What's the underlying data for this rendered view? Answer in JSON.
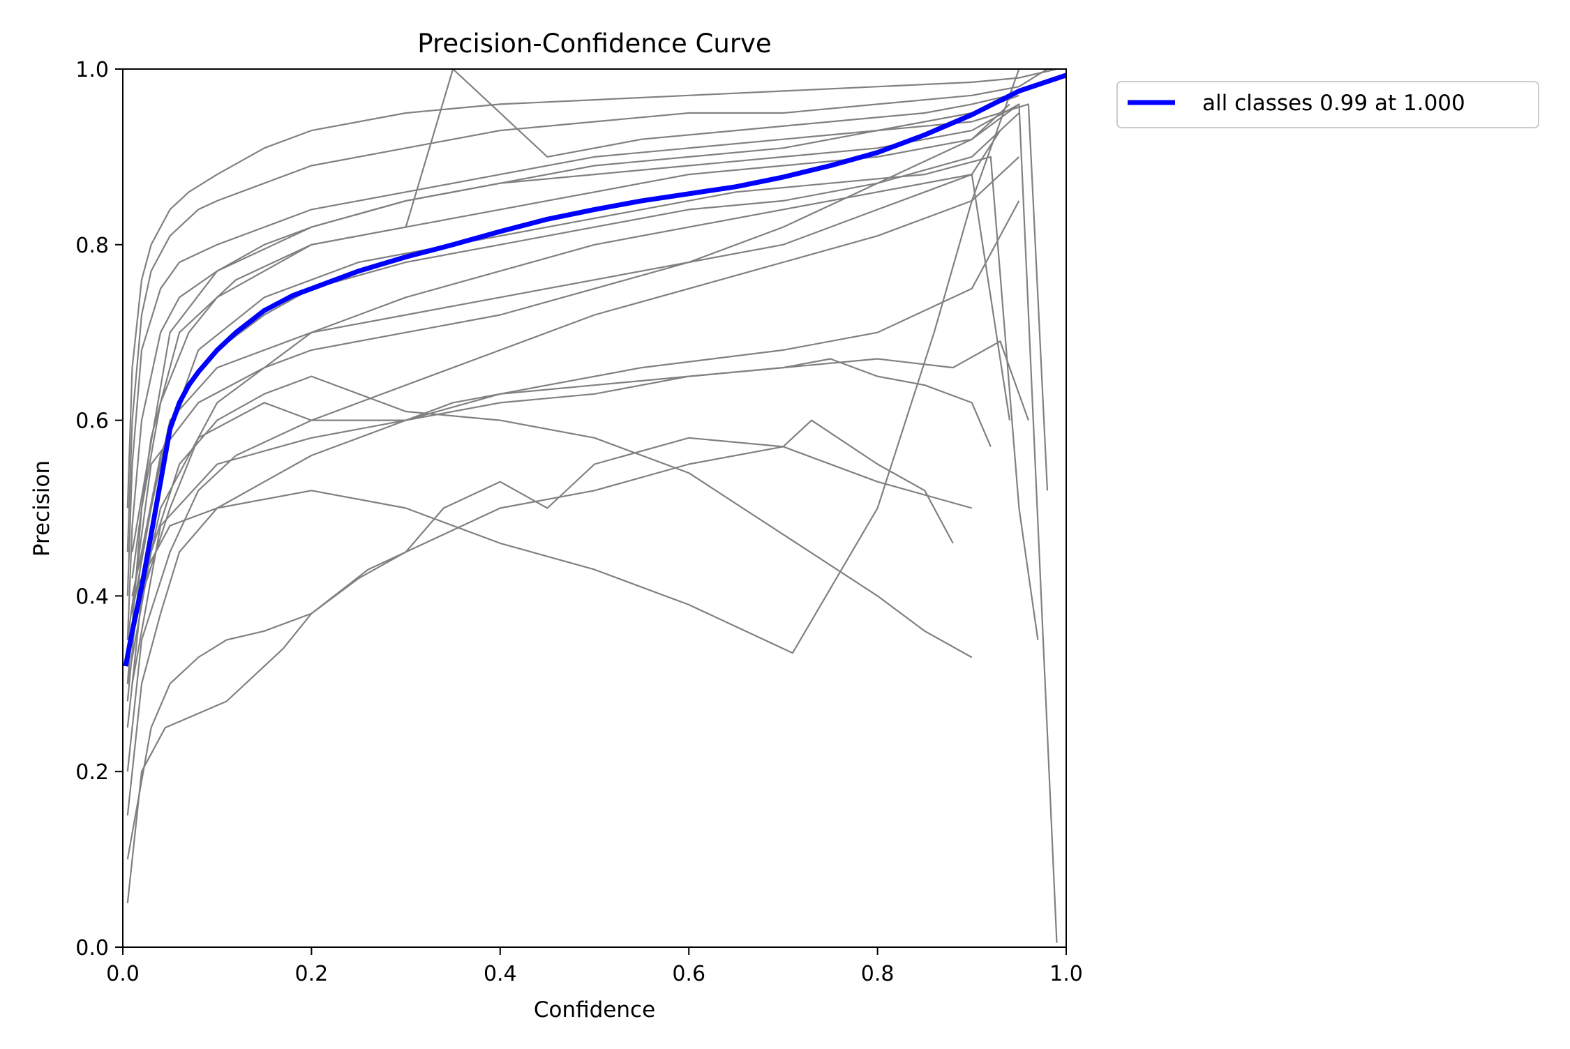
{
  "chart_data": {
    "type": "line",
    "title": "Precision-Confidence Curve",
    "xlabel": "Confidence",
    "ylabel": "Precision",
    "xlim": [
      0,
      1
    ],
    "ylim": [
      0,
      1
    ],
    "xticks": [
      "0.0",
      "0.2",
      "0.4",
      "0.6",
      "0.8",
      "1.0"
    ],
    "yticks": [
      "0.0",
      "0.2",
      "0.4",
      "0.6",
      "0.8",
      "1.0"
    ],
    "grid": false,
    "legend_position": "outside-top-right",
    "colors": {
      "aggregate": "#0000ff",
      "per_class": "#808080",
      "axes": "#000000"
    },
    "series": [
      {
        "name": "all classes 0.99 at 1.000",
        "color": "#0000ff",
        "x": [
          0.003,
          0.01,
          0.02,
          0.03,
          0.04,
          0.05,
          0.06,
          0.07,
          0.08,
          0.1,
          0.12,
          0.15,
          0.18,
          0.2,
          0.25,
          0.3,
          0.35,
          0.4,
          0.45,
          0.5,
          0.55,
          0.6,
          0.65,
          0.7,
          0.75,
          0.8,
          0.85,
          0.9,
          0.95,
          1.0
        ],
        "y": [
          0.32,
          0.36,
          0.41,
          0.47,
          0.53,
          0.59,
          0.62,
          0.64,
          0.655,
          0.68,
          0.7,
          0.725,
          0.742,
          0.75,
          0.77,
          0.786,
          0.8,
          0.815,
          0.829,
          0.84,
          0.85,
          0.858,
          0.866,
          0.877,
          0.89,
          0.905,
          0.925,
          0.948,
          0.975,
          0.993
        ]
      },
      {
        "color": "#808080",
        "x": [
          0.005,
          0.01,
          0.02,
          0.03,
          0.05,
          0.07,
          0.1,
          0.15,
          0.2,
          0.3,
          0.4,
          0.5,
          0.6,
          0.7,
          0.8,
          0.9,
          0.95,
          0.99
        ],
        "y": [
          0.5,
          0.66,
          0.76,
          0.8,
          0.84,
          0.86,
          0.88,
          0.91,
          0.93,
          0.95,
          0.96,
          0.965,
          0.97,
          0.975,
          0.98,
          0.985,
          0.99,
          1.0
        ]
      },
      {
        "color": "#808080",
        "x": [
          0.005,
          0.01,
          0.02,
          0.03,
          0.05,
          0.08,
          0.1,
          0.15,
          0.2,
          0.3,
          0.4,
          0.5,
          0.6,
          0.7,
          0.8,
          0.9,
          0.95,
          0.98
        ],
        "y": [
          0.45,
          0.6,
          0.72,
          0.77,
          0.81,
          0.84,
          0.85,
          0.87,
          0.89,
          0.91,
          0.93,
          0.94,
          0.95,
          0.95,
          0.96,
          0.97,
          0.98,
          1.0
        ]
      },
      {
        "color": "#808080",
        "x": [
          0.005,
          0.01,
          0.02,
          0.04,
          0.06,
          0.1,
          0.15,
          0.2,
          0.3,
          0.4,
          0.5,
          0.6,
          0.7,
          0.8,
          0.9,
          0.95
        ],
        "y": [
          0.4,
          0.55,
          0.68,
          0.75,
          0.78,
          0.8,
          0.82,
          0.84,
          0.86,
          0.88,
          0.9,
          0.91,
          0.92,
          0.93,
          0.95,
          0.97
        ]
      },
      {
        "color": "#808080",
        "x": [
          0.005,
          0.01,
          0.02,
          0.04,
          0.06,
          0.1,
          0.15,
          0.2,
          0.3,
          0.4,
          0.5,
          0.6,
          0.7,
          0.8,
          0.9,
          0.95
        ],
        "y": [
          0.35,
          0.48,
          0.6,
          0.7,
          0.74,
          0.77,
          0.8,
          0.82,
          0.85,
          0.87,
          0.88,
          0.89,
          0.9,
          0.91,
          0.93,
          0.96
        ]
      },
      {
        "color": "#808080",
        "x": [
          0.005,
          0.02,
          0.04,
          0.07,
          0.1,
          0.15,
          0.2,
          0.3,
          0.4,
          0.5,
          0.6,
          0.7,
          0.8,
          0.9,
          0.94
        ],
        "y": [
          0.3,
          0.5,
          0.62,
          0.7,
          0.74,
          0.77,
          0.8,
          0.82,
          0.84,
          0.86,
          0.88,
          0.89,
          0.9,
          0.92,
          0.96
        ]
      },
      {
        "color": "#808080",
        "x": [
          0.005,
          0.02,
          0.04,
          0.07,
          0.1,
          0.15,
          0.2,
          0.3,
          0.4,
          0.5,
          0.6,
          0.7,
          0.8,
          0.9,
          0.95
        ],
        "y": [
          0.28,
          0.45,
          0.56,
          0.64,
          0.68,
          0.72,
          0.75,
          0.78,
          0.8,
          0.82,
          0.84,
          0.85,
          0.87,
          0.9,
          0.95
        ]
      },
      {
        "color": "#808080",
        "x": [
          0.005,
          0.02,
          0.05,
          0.08,
          0.1,
          0.15,
          0.2,
          0.3,
          0.4,
          0.5,
          0.6,
          0.7,
          0.8,
          0.9,
          0.93
        ],
        "y": [
          0.25,
          0.4,
          0.5,
          0.58,
          0.62,
          0.66,
          0.7,
          0.74,
          0.77,
          0.8,
          0.82,
          0.84,
          0.86,
          0.88,
          0.93
        ]
      },
      {
        "color": "#808080",
        "x": [
          0.005,
          0.02,
          0.05,
          0.08,
          0.12,
          0.2,
          0.3,
          0.4,
          0.5,
          0.6,
          0.7,
          0.8,
          0.9,
          0.95
        ],
        "y": [
          0.2,
          0.35,
          0.45,
          0.52,
          0.56,
          0.6,
          0.64,
          0.68,
          0.72,
          0.75,
          0.78,
          0.81,
          0.85,
          0.9
        ]
      },
      {
        "color": "#808080",
        "x": [
          0.005,
          0.02,
          0.04,
          0.06,
          0.1,
          0.15,
          0.2,
          0.3,
          0.35,
          0.45,
          0.55,
          0.7,
          0.8,
          0.9,
          0.95
        ],
        "y": [
          0.15,
          0.3,
          0.38,
          0.45,
          0.5,
          0.53,
          0.56,
          0.6,
          0.62,
          0.64,
          0.66,
          0.68,
          0.7,
          0.75,
          0.85
        ]
      },
      {
        "color": "#808080",
        "x": [
          0.005,
          0.03,
          0.05,
          0.08,
          0.11,
          0.15,
          0.2,
          0.26,
          0.32,
          0.4,
          0.5,
          0.6,
          0.7,
          0.8,
          0.9
        ],
        "y": [
          0.1,
          0.25,
          0.3,
          0.33,
          0.35,
          0.36,
          0.38,
          0.43,
          0.46,
          0.5,
          0.52,
          0.55,
          0.57,
          0.53,
          0.5
        ]
      },
      {
        "color": "#808080",
        "x": [
          0.005,
          0.02,
          0.045,
          0.11,
          0.17,
          0.2,
          0.25,
          0.3,
          0.34,
          0.4,
          0.45,
          0.5,
          0.6,
          0.7,
          0.73,
          0.8,
          0.85,
          0.88
        ],
        "y": [
          0.05,
          0.2,
          0.25,
          0.28,
          0.34,
          0.38,
          0.42,
          0.45,
          0.5,
          0.53,
          0.5,
          0.55,
          0.58,
          0.57,
          0.6,
          0.55,
          0.52,
          0.46
        ]
      },
      {
        "color": "#808080",
        "x": [
          0.005,
          0.03,
          0.06,
          0.1,
          0.15,
          0.2,
          0.25,
          0.3,
          0.4,
          0.5,
          0.6,
          0.7,
          0.8,
          0.85,
          0.9
        ],
        "y": [
          0.3,
          0.45,
          0.55,
          0.6,
          0.63,
          0.65,
          0.63,
          0.61,
          0.6,
          0.58,
          0.54,
          0.47,
          0.4,
          0.36,
          0.33
        ]
      },
      {
        "color": "#808080",
        "x": [
          0.01,
          0.05,
          0.1,
          0.2,
          0.3,
          0.4,
          0.5,
          0.6,
          0.71,
          0.8,
          0.86,
          0.9,
          0.95
        ],
        "y": [
          0.4,
          0.48,
          0.5,
          0.52,
          0.5,
          0.46,
          0.43,
          0.39,
          0.335,
          0.5,
          0.7,
          0.85,
          1.0
        ]
      },
      {
        "color": "#808080",
        "x": [
          0.01,
          0.04,
          0.08,
          0.15,
          0.2,
          0.3,
          0.4,
          0.5,
          0.6,
          0.7,
          0.8,
          0.88,
          0.93,
          0.96
        ],
        "y": [
          0.35,
          0.5,
          0.58,
          0.62,
          0.6,
          0.6,
          0.63,
          0.64,
          0.65,
          0.66,
          0.67,
          0.66,
          0.69,
          0.6
        ]
      },
      {
        "color": "#808080",
        "x": [
          0.01,
          0.05,
          0.1,
          0.2,
          0.3,
          0.4,
          0.5,
          0.6,
          0.7,
          0.75,
          0.8,
          0.85,
          0.9,
          0.94
        ],
        "y": [
          0.4,
          0.6,
          0.66,
          0.7,
          0.72,
          0.74,
          0.76,
          0.78,
          0.8,
          0.82,
          0.84,
          0.86,
          0.88,
          0.6
        ]
      },
      {
        "color": "#808080",
        "x": [
          0.01,
          0.04,
          0.08,
          0.15,
          0.25,
          0.35,
          0.45,
          0.55,
          0.65,
          0.75,
          0.85,
          0.92,
          0.95,
          0.97
        ],
        "y": [
          0.38,
          0.56,
          0.68,
          0.74,
          0.78,
          0.8,
          0.82,
          0.84,
          0.86,
          0.87,
          0.88,
          0.9,
          0.5,
          0.35
        ]
      },
      {
        "color": "#808080",
        "x": [
          0.01,
          0.03,
          0.06,
          0.12,
          0.2,
          0.3,
          0.35,
          0.45,
          0.55,
          0.65,
          0.75,
          0.85,
          0.9,
          0.94
        ],
        "y": [
          0.42,
          0.58,
          0.7,
          0.76,
          0.8,
          0.82,
          1.0,
          0.9,
          0.92,
          0.93,
          0.94,
          0.95,
          0.96,
          0.97
        ]
      },
      {
        "color": "#808080",
        "x": [
          0.005,
          0.03,
          0.08,
          0.15,
          0.2,
          0.3,
          0.4,
          0.5,
          0.6,
          0.7,
          0.8,
          0.9,
          0.95,
          0.99
        ],
        "y": [
          0.35,
          0.55,
          0.62,
          0.66,
          0.68,
          0.7,
          0.72,
          0.75,
          0.78,
          0.82,
          0.87,
          0.92,
          0.96,
          0.005
        ]
      },
      {
        "color": "#808080",
        "x": [
          0.01,
          0.04,
          0.1,
          0.2,
          0.3,
          0.4,
          0.5,
          0.6,
          0.7,
          0.75,
          0.8,
          0.85,
          0.9,
          0.92
        ],
        "y": [
          0.3,
          0.48,
          0.55,
          0.58,
          0.6,
          0.62,
          0.63,
          0.65,
          0.66,
          0.67,
          0.65,
          0.64,
          0.62,
          0.57
        ]
      },
      {
        "color": "#808080",
        "x": [
          0.01,
          0.05,
          0.1,
          0.2,
          0.3,
          0.4,
          0.5,
          0.6,
          0.7,
          0.8,
          0.9,
          0.96,
          0.98
        ],
        "y": [
          0.45,
          0.7,
          0.77,
          0.82,
          0.85,
          0.87,
          0.89,
          0.9,
          0.91,
          0.93,
          0.94,
          0.96,
          0.52
        ]
      }
    ]
  }
}
